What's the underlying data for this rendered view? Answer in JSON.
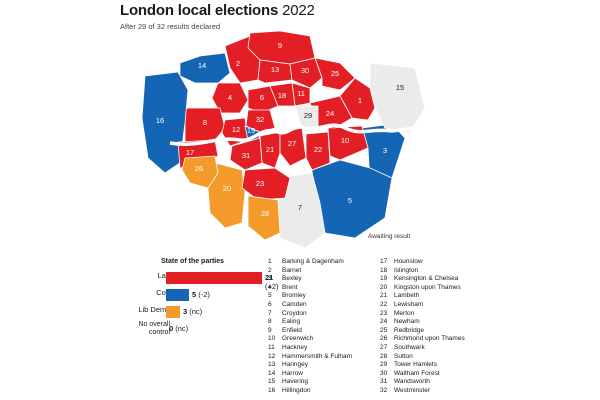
{
  "title_bold": "London local elections",
  "title_year": "2022",
  "subtitle": "After 29 of 32 results declared",
  "awaiting_label": "Awaiting result",
  "legend": {
    "title": "State of the parties",
    "rows": [
      {
        "party": "Lab",
        "seats": "21",
        "change": "(+2)",
        "color": "#e31e24",
        "share": 0.656
      },
      {
        "party": "Con",
        "seats": "5",
        "change": "(-2)",
        "color": "#1565b5",
        "share": 0.156
      },
      {
        "party": "Lib Dems",
        "seats": "3",
        "change": "(nc)",
        "color": "#f39a2b",
        "share": 0.094
      },
      {
        "party": "No overall control",
        "seats": "0",
        "change": "(nc)",
        "color": "",
        "share": 0
      }
    ]
  },
  "colors": {
    "lab": "#e31e24",
    "con": "#1565b5",
    "lib": "#f39a2b",
    "awaiting": "#ebebeb",
    "river": "#ffffff"
  },
  "boroughs": [
    {
      "n": "1",
      "name": "Barking & Dagenham",
      "party": "lab"
    },
    {
      "n": "2",
      "name": "Barnet",
      "party": "lab"
    },
    {
      "n": "3",
      "name": "Bexley",
      "party": "con"
    },
    {
      "n": "4",
      "name": "Brent",
      "party": "lab"
    },
    {
      "n": "5",
      "name": "Bromley",
      "party": "con"
    },
    {
      "n": "6",
      "name": "Camden",
      "party": "lab"
    },
    {
      "n": "7",
      "name": "Croydon",
      "party": "awaiting"
    },
    {
      "n": "8",
      "name": "Ealing",
      "party": "lab"
    },
    {
      "n": "9",
      "name": "Enfield",
      "party": "lab"
    },
    {
      "n": "10",
      "name": "Greenwich",
      "party": "lab"
    },
    {
      "n": "11",
      "name": "Hackney",
      "party": "lab"
    },
    {
      "n": "12",
      "name": "Hammersmith & Fulham",
      "party": "lab"
    },
    {
      "n": "13",
      "name": "Haringey",
      "party": "lab"
    },
    {
      "n": "14",
      "name": "Harrow",
      "party": "con"
    },
    {
      "n": "15",
      "name": "Havering",
      "party": "awaiting"
    },
    {
      "n": "16",
      "name": "Hillingdon",
      "party": "con"
    },
    {
      "n": "17",
      "name": "Hounslow",
      "party": "lab"
    },
    {
      "n": "18",
      "name": "Islington",
      "party": "lab"
    },
    {
      "n": "19",
      "name": "Kensington & Chelsea",
      "party": "con"
    },
    {
      "n": "20",
      "name": "Kingston upon Thames",
      "party": "lib"
    },
    {
      "n": "21",
      "name": "Lambeth",
      "party": "lab"
    },
    {
      "n": "22",
      "name": "Lewisham",
      "party": "lab"
    },
    {
      "n": "23",
      "name": "Merton",
      "party": "lab"
    },
    {
      "n": "24",
      "name": "Newham",
      "party": "lab"
    },
    {
      "n": "25",
      "name": "Redbridge",
      "party": "lab"
    },
    {
      "n": "26",
      "name": "Richmond upon Thames",
      "party": "lib"
    },
    {
      "n": "27",
      "name": "Southwark",
      "party": "lab"
    },
    {
      "n": "28",
      "name": "Sutton",
      "party": "lib"
    },
    {
      "n": "29",
      "name": "Tower Hamlets",
      "party": "awaiting"
    },
    {
      "n": "30",
      "name": "Waltham Forest",
      "party": "lab"
    },
    {
      "n": "31",
      "name": "Wandsworth",
      "party": "lab"
    },
    {
      "n": "32",
      "name": "Westminster",
      "party": "lab"
    }
  ]
}
